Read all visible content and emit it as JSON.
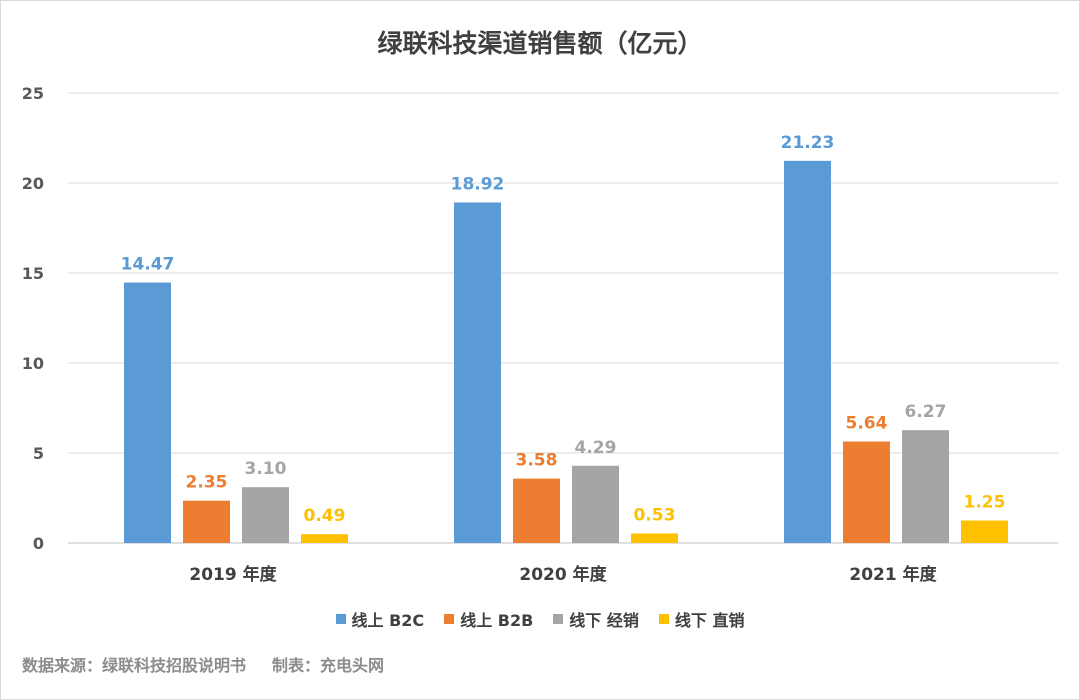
{
  "chart_data": {
    "type": "bar",
    "title": "绿联科技渠道销售额（亿元）",
    "categories": [
      "2019 年度",
      "2020 年度",
      "2021 年度"
    ],
    "ylim": [
      0,
      25
    ],
    "yticks": [
      0,
      5,
      10,
      15,
      20,
      25
    ],
    "grid": true,
    "legend_position": "bottom",
    "series": [
      {
        "name": "线上 B2C",
        "color": "#5b9bd5",
        "values": [
          14.47,
          18.92,
          21.23
        ],
        "labels": [
          "14.47",
          "18.92",
          "21.23"
        ]
      },
      {
        "name": "线上 B2B",
        "color": "#ed7d31",
        "values": [
          2.35,
          3.58,
          5.64
        ],
        "labels": [
          "2.35",
          "3.58",
          "5.64"
        ]
      },
      {
        "name": "线下 经销",
        "color": "#a5a5a5",
        "values": [
          3.1,
          4.29,
          6.27
        ],
        "labels": [
          "3.10",
          "4.29",
          "6.27"
        ]
      },
      {
        "name": "线下 直销",
        "color": "#ffc000",
        "values": [
          0.49,
          0.53,
          1.25
        ],
        "labels": [
          "0.49",
          "0.53",
          "1.25"
        ]
      }
    ]
  },
  "footer": {
    "source": "数据来源：绿联科技招股说明书",
    "maker": "制表：充电头网"
  }
}
